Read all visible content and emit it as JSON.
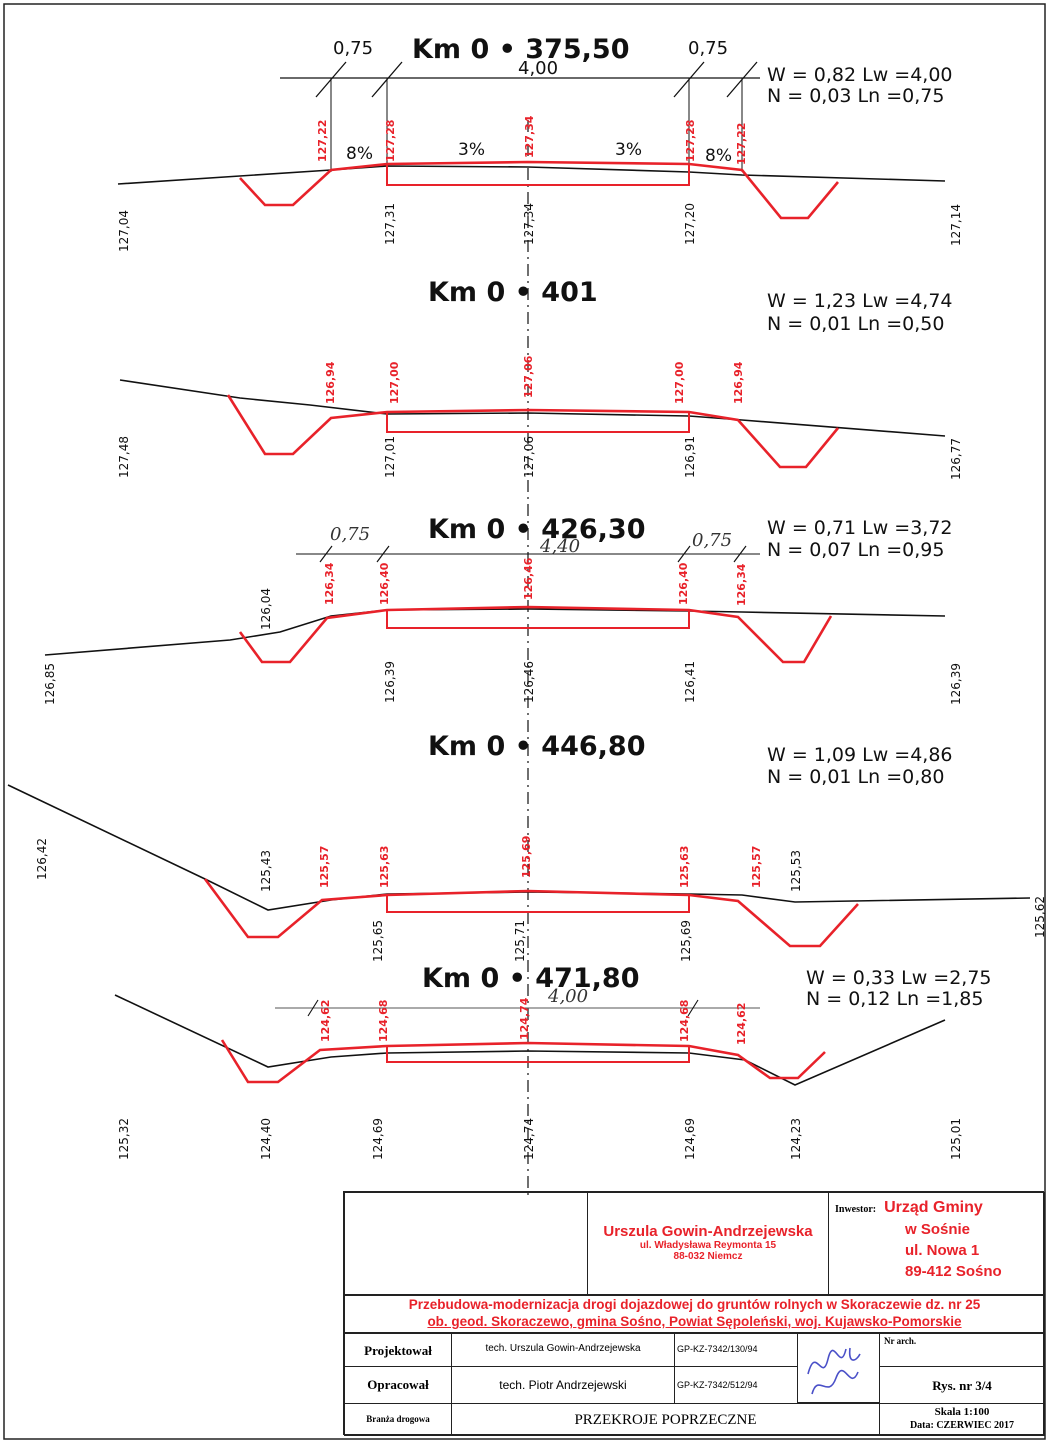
{
  "sections": [
    {
      "km": "Km  0  •  375,50",
      "w": "W  =  0,82  Lw  =4,00",
      "n": "N  =  0,03    Ln  =0,75",
      "dims": {
        "left": "0,75",
        "right": "0,75",
        "center": "4,00"
      },
      "slopes": [
        "8%",
        "3%",
        "3%",
        "8%"
      ],
      "red_elev": [
        "127,22",
        "127,28",
        "127,34",
        "127,28",
        "127,22"
      ],
      "ground_elev": [
        "127,04",
        "127,31",
        "127,34",
        "127,20",
        "127,14"
      ]
    },
    {
      "km": "Km  0  •  401",
      "w": "W  =  1,23  Lw  =4,74",
      "n": "N  =  0,01  Ln  =0,50",
      "red_elev": [
        "126,94",
        "127,00",
        "127,06",
        "127,00",
        "126,94"
      ],
      "ground_elev": [
        "127,48",
        "127,01",
        "127,06",
        "126,91",
        "126,77"
      ]
    },
    {
      "km": "Km  0  •  426,30",
      "w": "W  =  0,71 Lw  =3,72",
      "n": "N  =  0,07     Ln  =0,95",
      "dims": {
        "left": "0,75",
        "right": "0,75",
        "center": "4,40"
      },
      "red_elev": [
        "126,34",
        "126,40",
        "126,46",
        "126,40",
        "126,34"
      ],
      "ground_elev": [
        "126,85",
        "126,04",
        "126,39",
        "126,46",
        "126,41",
        "126,39"
      ]
    },
    {
      "km": "Km  0  •  446,80",
      "w": "W  =  1,09  Lw  =4,86",
      "n": "N  =  0,01  Ln  =0,80",
      "red_elev": [
        "125,57",
        "125,63",
        "125,69",
        "125,63",
        "125,57"
      ],
      "ground_elev": [
        "126,42",
        "125,43",
        "125,65",
        "125,71",
        "125,69",
        "125,53",
        "125,62"
      ]
    },
    {
      "km": "Km  0  •  471,80",
      "w": "W  =  0,33  Lw  =2,75",
      "n": "N  =  0,12    Ln  =1,85",
      "dims": {
        "center": "4,00"
      },
      "red_elev": [
        "124,62",
        "124,68",
        "124,74",
        "124,68",
        "124,62"
      ],
      "ground_elev": [
        "125,32",
        "124,40",
        "124,69",
        "124,74",
        "124,69",
        "124,23",
        "125,01"
      ]
    }
  ],
  "title_block": {
    "designer_name": "Urszula Gowin-Andrzejewska",
    "designer_street": "ul. Władysława Reymonta 15",
    "designer_city": "88-032 Niemcz",
    "investor_label": "Inwestor:",
    "investor_name": "Urząd Gminy",
    "investor_name2": "w Sośnie",
    "investor_street": "ul. Nowa 1",
    "investor_city": "89-412 Sośno",
    "project_line1": "Przebudowa-modernizacja drogi dojazdowej do gruntów rolnych w Skoraczewie dz. nr 25",
    "project_line2": "ob. geod. Skoraczewo, gmina Sośno, Powiat Sępoleński, woj. Kujawsko-Pomorskie",
    "row1_label": "Projektował",
    "row1_name": "tech. Urszula Gowin-Andrzejewska",
    "row1_number": "GP-KZ-7342/130/94",
    "archive_label": "Nr arch.",
    "row2_label": "Opracował",
    "row2_name": "tech. Piotr Andrzejewski",
    "row2_number": "GP-KZ-7342/512/94",
    "drawing_no": "Rys. nr 3/4",
    "row3_label": "Branża drogowa",
    "drawing_title": "PRZEKROJE POPRZECZNE",
    "scale": "Skala 1:100",
    "date": "Data: CZERWIEC 2017"
  },
  "colors": {
    "design_red": "#e8222a",
    "ground_black": "#111111"
  }
}
